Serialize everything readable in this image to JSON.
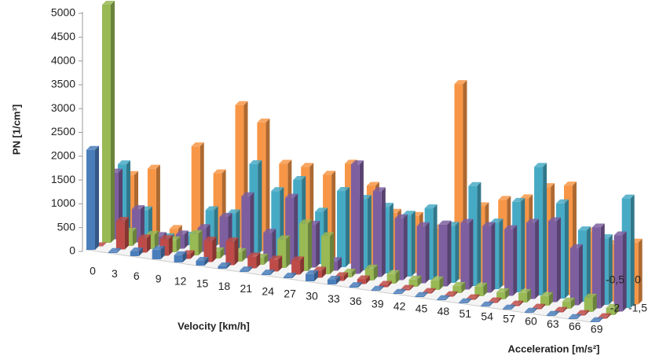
{
  "chart_data": {
    "type": "bar3d",
    "y_label": "PN [1/cm³]",
    "x_label": "Velocity [km/h]",
    "z_label": "Acceleration [m/s²]",
    "categories": [
      "0",
      "3",
      "6",
      "9",
      "12",
      "15",
      "18",
      "21",
      "24",
      "27",
      "30",
      "33",
      "36",
      "39",
      "42",
      "45",
      "48",
      "51",
      "54",
      "57",
      "60",
      "63",
      "66",
      "69"
    ],
    "ylim": [
      0,
      5000
    ],
    "yticks": [
      0,
      500,
      1000,
      1500,
      2000,
      2500,
      3000,
      3500,
      4000,
      4500,
      5000
    ],
    "series": [
      {
        "name": "-2",
        "color": "#4a7ebb",
        "values": [
          2100,
          20,
          100,
          200,
          150,
          100,
          50,
          30,
          30,
          30,
          150,
          100,
          30,
          20,
          20,
          20,
          20,
          20,
          20,
          20,
          20,
          20,
          20,
          20
        ]
      },
      {
        "name": "-1,5",
        "color": "#be4b48",
        "values": [
          0,
          600,
          300,
          350,
          100,
          450,
          500,
          250,
          250,
          300,
          150,
          100,
          100,
          50,
          30,
          30,
          30,
          30,
          30,
          30,
          30,
          30,
          30,
          30
        ]
      },
      {
        "name": null,
        "color": "#98b954",
        "values": [
          5000,
          300,
          300,
          250,
          450,
          150,
          200,
          150,
          600,
          1000,
          800,
          100,
          250,
          200,
          150,
          200,
          150,
          200,
          150,
          200,
          200,
          150,
          300,
          150
        ]
      },
      {
        "name": "-0,5",
        "color": "#7d5fa0",
        "values": [
          1400,
          700,
          200,
          300,
          500,
          800,
          1300,
          600,
          1400,
          900,
          200,
          2300,
          1800,
          1300,
          1200,
          1300,
          1400,
          1400,
          1400,
          1600,
          1700,
          1200,
          1700,
          1600
        ]
      },
      {
        "name": "0",
        "color": "#46aac5",
        "values": [
          1500,
          600,
          100,
          200,
          800,
          800,
          1900,
          1400,
          1700,
          1100,
          1600,
          1500,
          1400,
          1300,
          1500,
          1200,
          2100,
          1400,
          1900,
          2700,
          2000,
          1500,
          1400,
          2300
        ]
      },
      {
        "name": null,
        "color": "#f79646",
        "values": [
          1200,
          1400,
          200,
          2000,
          1500,
          3000,
          2700,
          1900,
          1900,
          1800,
          2100,
          1700,
          1200,
          1200,
          1000,
          4100,
          1600,
          1800,
          1900,
          2200,
          2300,
          1400,
          1200,
          1300
        ]
      }
    ]
  }
}
